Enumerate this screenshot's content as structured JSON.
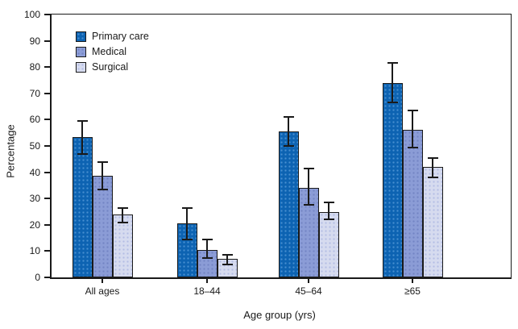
{
  "chart_data": {
    "type": "bar",
    "title": "",
    "xlabel": "Age group (yrs)",
    "ylabel": "Percentage",
    "categories": [
      "All ages",
      "18–44",
      "45–64",
      "≥65"
    ],
    "series": [
      {
        "name": "Primary care",
        "color": "#0d63b2",
        "values": [
          53.5,
          20.5,
          55.5,
          74
        ],
        "ci_low": [
          47,
          14.5,
          50,
          66.5
        ],
        "ci_high": [
          59.5,
          26.5,
          61,
          81.5
        ]
      },
      {
        "name": "Medical",
        "color": "#8b9cd6",
        "values": [
          38.5,
          10.5,
          34,
          56
        ],
        "ci_low": [
          33.5,
          7.5,
          27.5,
          49.5
        ],
        "ci_high": [
          44,
          14.5,
          41.5,
          63.5
        ]
      },
      {
        "name": "Surgical",
        "color": "#d6dbef",
        "values": [
          24,
          7,
          25,
          42
        ],
        "ci_low": [
          21,
          5,
          22,
          38
        ],
        "ci_high": [
          26.5,
          8.5,
          28.5,
          45.5
        ]
      }
    ],
    "ylim": [
      0,
      100
    ],
    "y_ticks": [
      0,
      10,
      20,
      30,
      40,
      50,
      60,
      70,
      80,
      90,
      100
    ],
    "error_bars": true,
    "grid": false,
    "legend_position": "top-left-inside",
    "axis_color": "#1a1a1a",
    "error_bar_color": "#1a1a1a"
  }
}
